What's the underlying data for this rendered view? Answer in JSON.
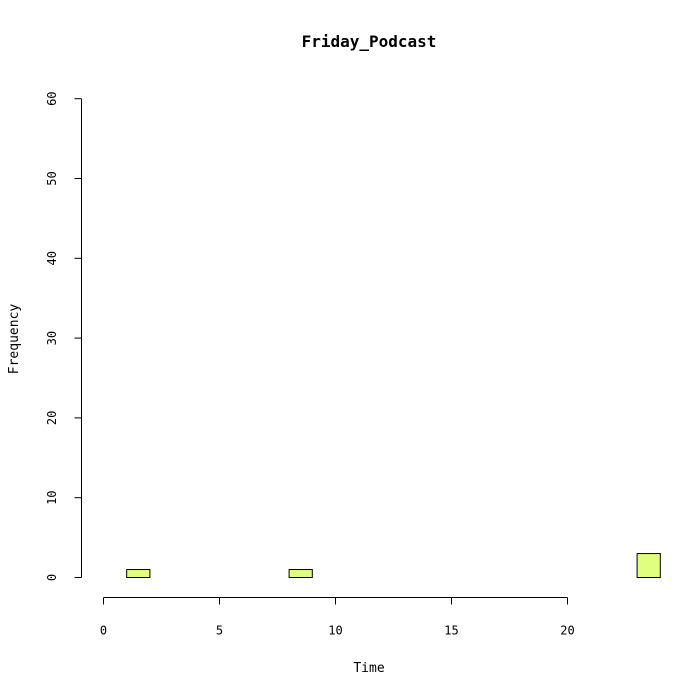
{
  "chart_data": {
    "type": "bar",
    "title": "Friday_Podcast",
    "xlabel": "Time",
    "ylabel": "Frequency",
    "xlim": [
      0,
      24
    ],
    "ylim": [
      0,
      60
    ],
    "x_ticks": [
      0,
      5,
      10,
      15,
      20
    ],
    "y_ticks": [
      0,
      10,
      20,
      30,
      40,
      50,
      60
    ],
    "bin_width": 1,
    "bins": [
      {
        "start": 0,
        "end": 1,
        "count": 0
      },
      {
        "start": 1,
        "end": 2,
        "count": 1
      },
      {
        "start": 2,
        "end": 3,
        "count": 0
      },
      {
        "start": 3,
        "end": 4,
        "count": 0
      },
      {
        "start": 4,
        "end": 5,
        "count": 0
      },
      {
        "start": 5,
        "end": 6,
        "count": 0
      },
      {
        "start": 6,
        "end": 7,
        "count": 0
      },
      {
        "start": 7,
        "end": 8,
        "count": 0
      },
      {
        "start": 8,
        "end": 9,
        "count": 1
      },
      {
        "start": 9,
        "end": 10,
        "count": 0
      },
      {
        "start": 10,
        "end": 11,
        "count": 0
      },
      {
        "start": 11,
        "end": 12,
        "count": 0
      },
      {
        "start": 12,
        "end": 13,
        "count": 0
      },
      {
        "start": 13,
        "end": 14,
        "count": 0
      },
      {
        "start": 14,
        "end": 15,
        "count": 0
      },
      {
        "start": 15,
        "end": 16,
        "count": 0
      },
      {
        "start": 16,
        "end": 17,
        "count": 0
      },
      {
        "start": 17,
        "end": 18,
        "count": 0
      },
      {
        "start": 18,
        "end": 19,
        "count": 0
      },
      {
        "start": 19,
        "end": 20,
        "count": 0
      },
      {
        "start": 20,
        "end": 21,
        "count": 0
      },
      {
        "start": 21,
        "end": 22,
        "count": 0
      },
      {
        "start": 22,
        "end": 23,
        "count": 0
      },
      {
        "start": 23,
        "end": 24,
        "count": 3
      }
    ],
    "bar_color": "#e0ff80",
    "grid": false
  }
}
